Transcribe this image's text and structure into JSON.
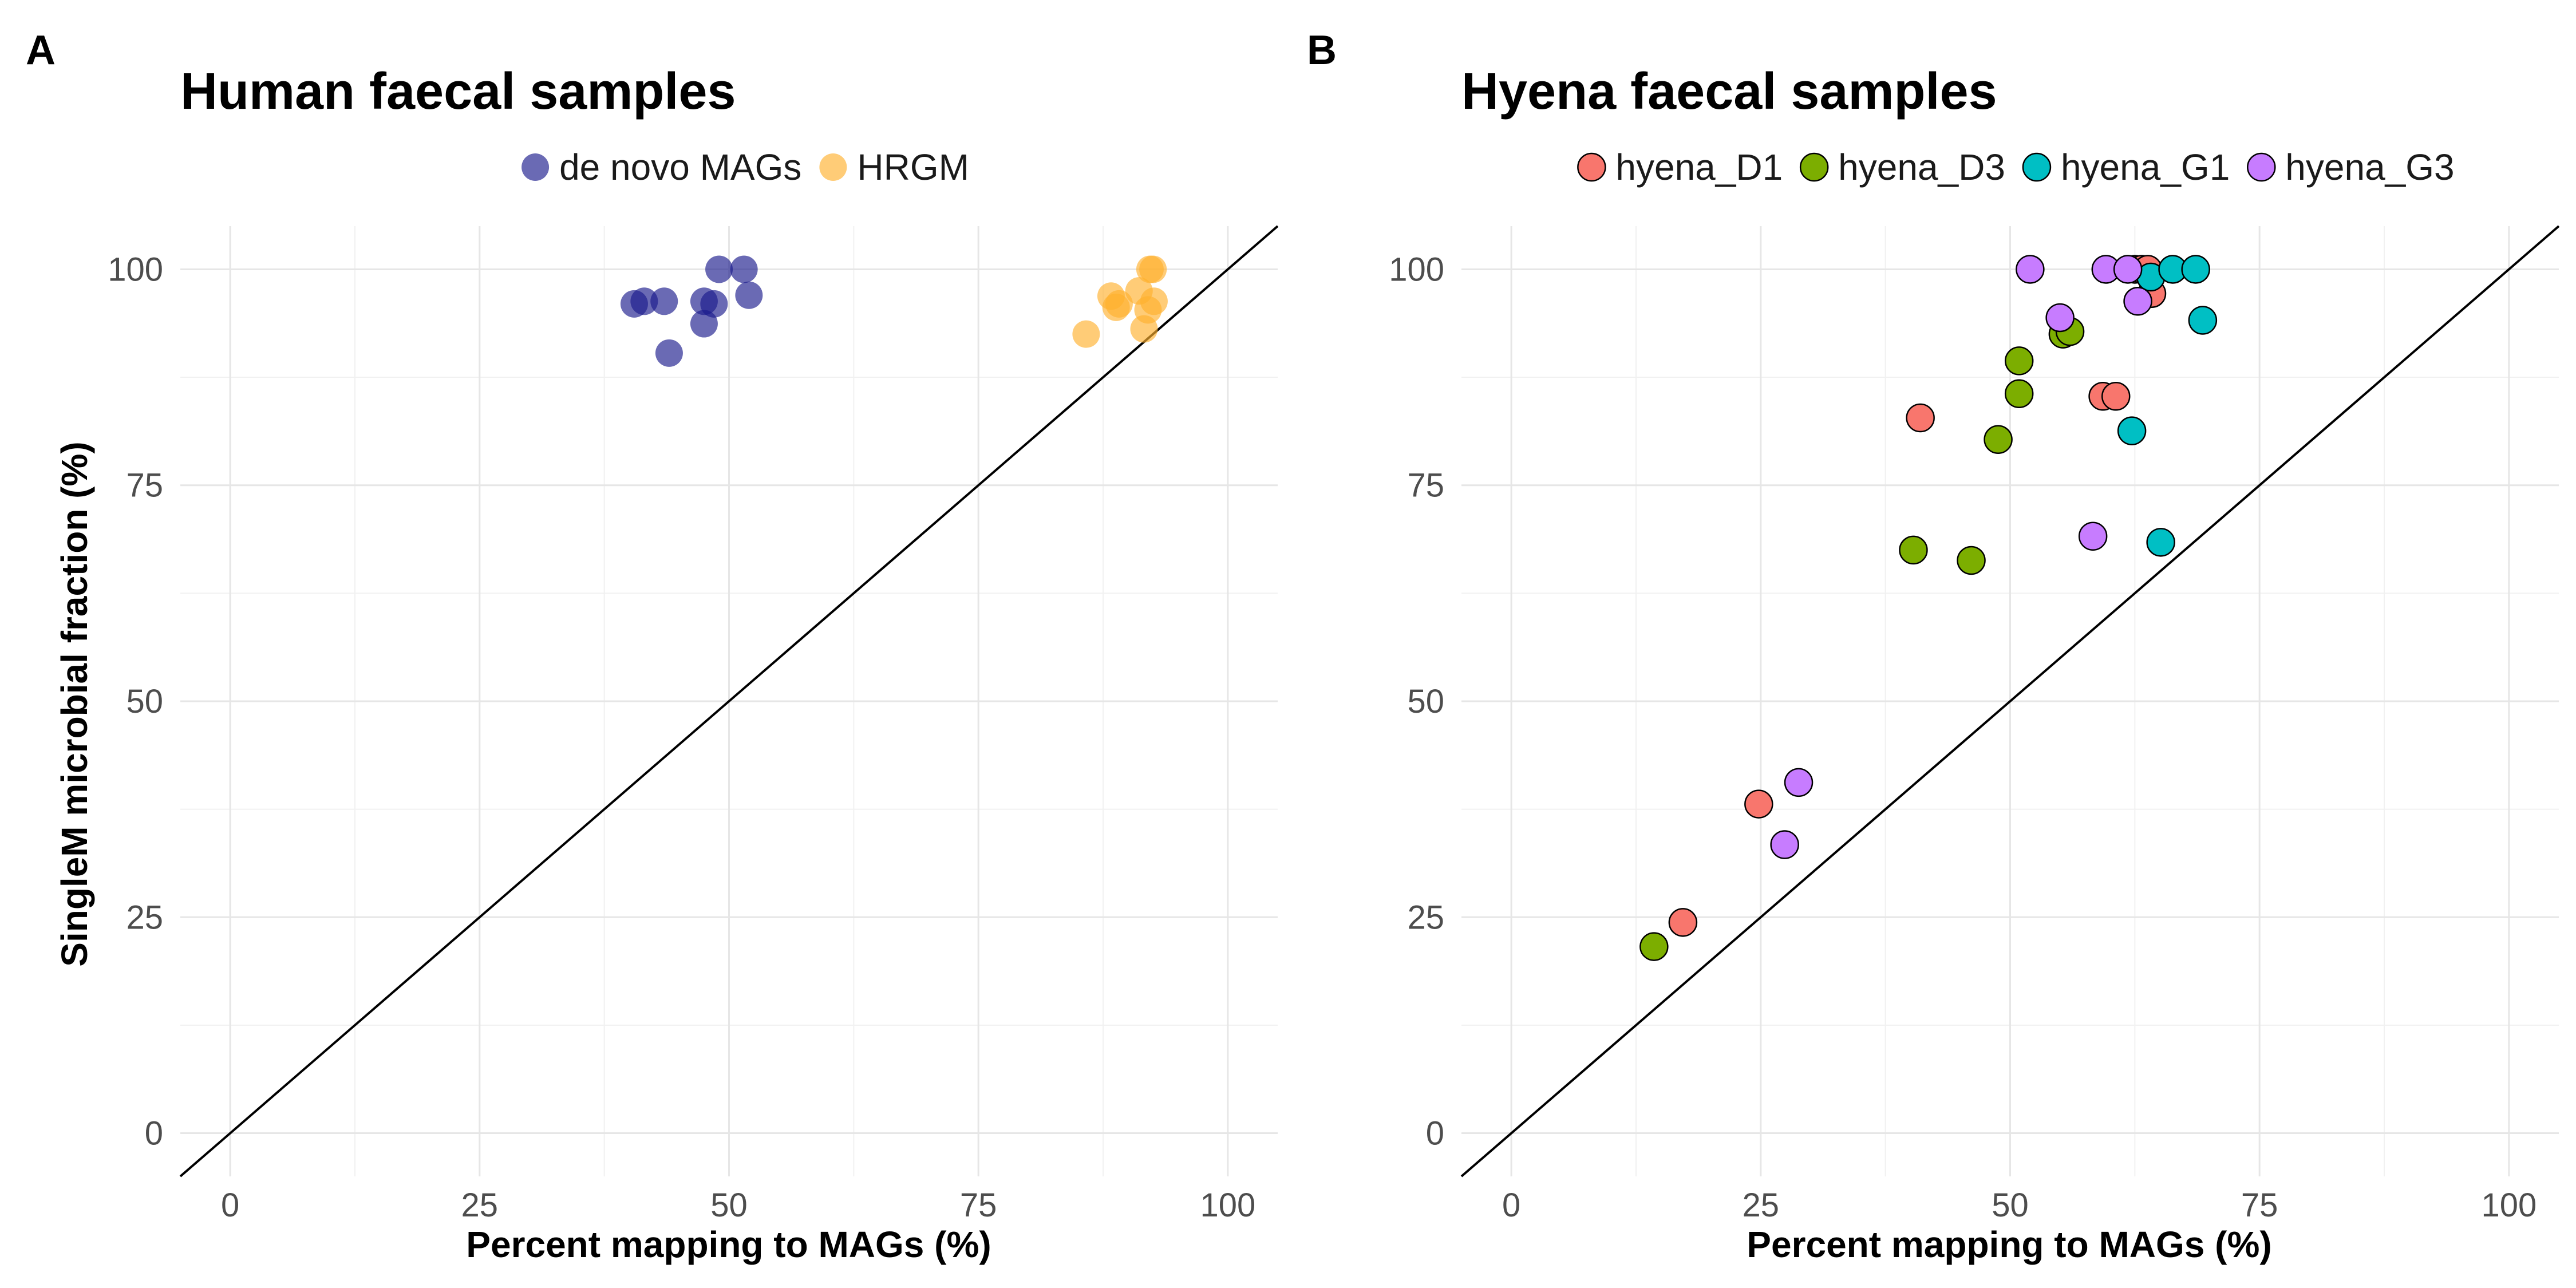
{
  "chart_data": [
    {
      "panel_letter": "A",
      "type": "scatter",
      "title": "Human faecal samples",
      "xlabel": "Percent mapping to MAGs (%)",
      "ylabel": "SingleM microbial fraction (%)",
      "xlim": [
        -5,
        105
      ],
      "ylim": [
        -5,
        105
      ],
      "xticks": [
        0,
        25,
        50,
        75,
        100
      ],
      "yticks": [
        0,
        25,
        50,
        75,
        100
      ],
      "tick_labels": {
        "x": [
          "0",
          "25",
          "50",
          "75",
          "100"
        ],
        "y": [
          "0",
          "25",
          "50",
          "75",
          "100"
        ]
      },
      "reference_line": "y = x",
      "legend_position": "top",
      "point_style": "translucent",
      "series": [
        {
          "name": "de novo MAGs",
          "color": "#1a1a8c",
          "x": [
            40.5,
            41.5,
            43.5,
            44.0,
            47.5,
            47.5,
            48.5,
            49.0,
            51.5,
            52.0
          ],
          "y": [
            96.0,
            96.3,
            96.3,
            90.3,
            96.3,
            93.7,
            96.0,
            100.0,
            100.0,
            97.0
          ]
        },
        {
          "name": "HRGM",
          "color": "#ffb02e",
          "x": [
            85.8,
            88.3,
            88.8,
            89.1,
            91.1,
            91.6,
            92.0,
            92.2,
            92.6,
            92.5
          ],
          "y": [
            92.5,
            96.9,
            95.6,
            96.0,
            97.5,
            93.1,
            95.3,
            100.0,
            96.3,
            100.0
          ]
        }
      ]
    },
    {
      "panel_letter": "B",
      "type": "scatter",
      "title": "Hyena faecal samples",
      "xlabel": "Percent mapping to MAGs (%)",
      "ylabel": "",
      "xlim": [
        -5,
        105
      ],
      "ylim": [
        -5,
        105
      ],
      "xticks": [
        0,
        25,
        50,
        75,
        100
      ],
      "yticks": [
        0,
        25,
        50,
        75,
        100
      ],
      "tick_labels": {
        "x": [
          "0",
          "25",
          "50",
          "75",
          "100"
        ],
        "y": [
          "0",
          "25",
          "50",
          "75",
          "100"
        ]
      },
      "reference_line": "y = x",
      "legend_position": "top",
      "point_style": "outlined",
      "series": [
        {
          "name": "hyena_D1",
          "color": "#f8766d",
          "x": [
            17.2,
            24.8,
            41.0,
            59.3,
            60.6,
            62.5,
            63.2,
            63.8,
            64.2
          ],
          "y": [
            24.4,
            38.1,
            82.8,
            85.3,
            85.3,
            100.0,
            100.0,
            100.0,
            97.2
          ]
        },
        {
          "name": "hyena_D3",
          "color": "#7cae00",
          "x": [
            14.3,
            40.3,
            46.1,
            48.8,
            50.9,
            50.9,
            55.3,
            56.0
          ],
          "y": [
            21.6,
            67.5,
            66.3,
            80.3,
            85.6,
            89.4,
            92.5,
            92.8
          ]
        },
        {
          "name": "hyena_G1",
          "color": "#00bfc4",
          "x": [
            62.2,
            64.1,
            65.1,
            66.3,
            68.6,
            69.3
          ],
          "y": [
            81.3,
            99.1,
            68.4,
            100.0,
            100.0,
            94.1
          ]
        },
        {
          "name": "hyena_G3",
          "color": "#c77cff",
          "x": [
            27.4,
            28.8,
            52.0,
            55.0,
            58.3,
            59.6,
            61.8,
            62.8
          ],
          "y": [
            33.4,
            40.6,
            100.0,
            94.4,
            69.1,
            100.0,
            100.0,
            96.3
          ]
        }
      ]
    }
  ]
}
